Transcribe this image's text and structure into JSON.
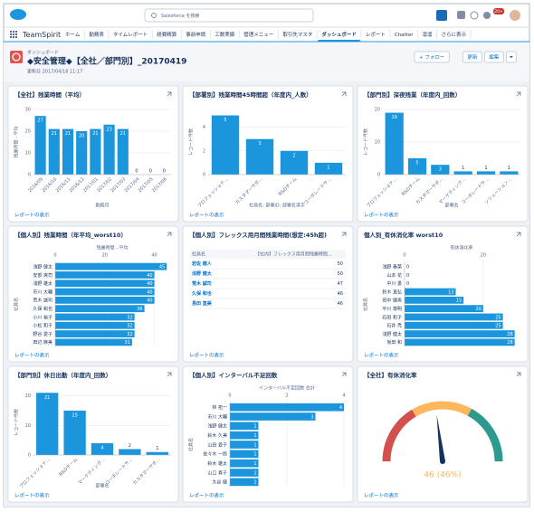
{
  "topbar": {
    "search": "Salesforce を検索",
    "badge": "20+"
  },
  "nav": {
    "app": "TeamSpirit",
    "tabs": [
      "ホーム",
      "勤務表",
      "タイムレポート",
      "経費精算",
      "事前申請",
      "工数実績",
      "管理メニュー",
      "取引先マスタ",
      "ダッシュボード",
      "レポート",
      "Chatter",
      "凛凛",
      "さらに表示"
    ],
    "active": 8
  },
  "header": {
    "label": "ダッシュボード",
    "title": "◆安全管理◆【全社／部門別】_20170419",
    "updated": "更新日 2017/04/18 11:17",
    "buttons": [
      "+ フォロー",
      "更新",
      "編集"
    ]
  },
  "widgets": [
    {
      "title": "【全社】残業時間（平均）",
      "footer": "レポートの表示",
      "chart": {
        "type": "bar",
        "color": "#1b96dd",
        "y_title": "残業時間 - 平均",
        "x_title": "勤務月",
        "categories": [
          "2016/09",
          "2016/10",
          "2016/11",
          "2016/12",
          "2017/01",
          "2017/02",
          "2017/03",
          "2017/04",
          "2017/05",
          "2017/06"
        ],
        "values": [
          27,
          21,
          21,
          20,
          21,
          23,
          21,
          0,
          0,
          0
        ],
        "ylim": [
          0,
          30
        ],
        "yticks": [
          0,
          10,
          20,
          30
        ]
      }
    },
    {
      "title": "【部署別】残業時間45時間超（年度内_人数）",
      "footer": "レポートの表示",
      "chart": {
        "type": "bar",
        "color": "#1b96dd",
        "y_title": "レコード件数",
        "x_title": "社員名: 部署ID: 部署名漢字",
        "categories": [
          "プロフェッショナ...",
          "カスタマーサポ...",
          "R&Dチーム",
          "コーポレートサ..."
        ],
        "values": [
          5,
          3,
          2,
          1
        ],
        "ylim": [
          0,
          5.5
        ],
        "yticks": [
          0,
          2,
          4
        ]
      }
    },
    {
      "title": "【部門別】深夜残業（年度内_回数）",
      "footer": "レポートの表示",
      "chart": {
        "type": "bar",
        "color": "#1b96dd",
        "y_title": "レコード件数",
        "x_title": "部署名",
        "categories": [
          "プロフェッショナ...",
          "R&Dチーム",
          "カスタマーサポ...",
          "マーケティング...",
          "コーポレートサ...",
          "ソリューション..."
        ],
        "values": [
          19,
          5,
          3,
          1,
          1,
          1
        ],
        "ylim": [
          0,
          20
        ],
        "yticks": [
          0,
          10,
          20
        ]
      }
    },
    {
      "title": "【個人別】残業時間（年平均_worst10）",
      "footer": "レポートの表示",
      "chart": {
        "type": "hbar",
        "color": "#1b96dd",
        "x_title": "残業時間 - 平均",
        "y_title": "社員名",
        "categories": [
          "浅野 健太",
          "安部 爽司",
          "浅野 雄太",
          "市川 大輔",
          "荒木 誠司",
          "久保 和也",
          "小川 裕子",
          "小松 和子",
          "野谷 愛子",
          "田辺 麻美"
        ],
        "values": [
          45,
          40,
          40,
          40,
          40,
          36,
          32,
          32,
          32,
          31
        ],
        "xlim": [
          0,
          46
        ],
        "xticks": [
          0,
          20,
          40
        ]
      }
    },
    {
      "title": "【個人別】フレックス用月間残業時間(想定:45h超)",
      "footer": "レポートの表示",
      "chart": {
        "type": "table",
        "columns": [
          "社員名",
          "【社内】フレックス用月間残業時間..."
        ],
        "rows": [
          [
            "岩佐 健人",
            50
          ],
          [
            "浅野 健太",
            50
          ],
          [
            "荒木 誠司",
            47
          ],
          [
            "久保 和也",
            46
          ],
          [
            "島田 直美",
            46
          ]
        ]
      }
    },
    {
      "title": "個人別_有休消化率 worst10",
      "footer": "レポートの表示",
      "chart": {
        "type": "hbar",
        "color": "#1b96dd",
        "x_title": "有休消化率",
        "y_title": "社員名",
        "categories": [
          "浅野 春菜",
          "山本 花",
          "中川 勇",
          "鈴木 直弘",
          "田中 健男",
          "平川 尊明",
          "石田 和子",
          "石井 亮",
          "浅野 健太",
          "坂田 和"
        ],
        "values": [
          0,
          0,
          0,
          13,
          15,
          20,
          25,
          25,
          28,
          28
        ],
        "xlim": [
          0,
          29
        ],
        "xticks": [
          0,
          20
        ]
      }
    },
    {
      "title": "【部門別】休日出勤（年度内_回数）",
      "footer": "レポートの表示",
      "chart": {
        "type": "bar",
        "color": "#1b96dd",
        "y_title": "レコード件数",
        "x_title": "部署名",
        "categories": [
          "プロフェッショナ...",
          "R&Dチーム",
          "マーケティング...",
          "コーポレートサ...",
          "カスタマーサポ..."
        ],
        "values": [
          21,
          15,
          4,
          2,
          1
        ],
        "ylim": [
          0,
          22
        ],
        "yticks": [
          0,
          10,
          20
        ]
      }
    },
    {
      "title": "【個人別】インターバル不足回数",
      "footer": "レポートの表示",
      "chart": {
        "type": "hbar",
        "color": "#1b96dd",
        "x_title": "インターバル不足回数 合計",
        "y_title": "社員名",
        "categories": [
          "林 拓一",
          "市川 大輔",
          "浅野 健太",
          "鈴木 久美",
          "山田 愛子",
          "佐々木 一郎",
          "鈴木 雄太",
          "山口 真子",
          "大谷 健"
        ],
        "values": [
          4,
          3,
          1,
          1,
          1,
          1,
          1,
          1,
          1
        ],
        "xlim": [
          0,
          4
        ],
        "xticks": [
          0,
          2,
          4
        ]
      }
    },
    {
      "title": "【全社】有休消化率",
      "footer": "レポートの表示",
      "chart": {
        "type": "gauge",
        "value": 46,
        "value_label": "46 (46%)",
        "min": 0,
        "max": 100,
        "bands": [
          {
            "to": 33,
            "color": "#d4504c"
          },
          {
            "to": 66,
            "color": "#ffb75d"
          },
          {
            "to": 100,
            "color": "#2e9a8e"
          }
        ],
        "needle_color": "#16325c",
        "label_color": "#ffb75d"
      }
    }
  ]
}
